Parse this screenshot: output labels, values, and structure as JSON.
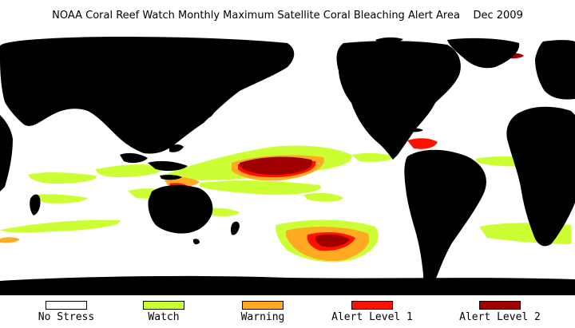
{
  "title": "NOAA Coral Reef Watch Monthly Maximum Satellite Coral Bleaching Alert Area    Dec 2009",
  "colors": {
    "ocean": "#ffffff",
    "land": "#000000"
  },
  "legend": [
    {
      "label": "No Stress",
      "color": "#ffffff"
    },
    {
      "label": "Watch",
      "color": "#ccff33"
    },
    {
      "label": "Warning",
      "color": "#ffaa22"
    },
    {
      "label": "Alert Level 1",
      "color": "#ff1100"
    },
    {
      "label": "Alert Level 2",
      "color": "#a00000"
    }
  ]
}
